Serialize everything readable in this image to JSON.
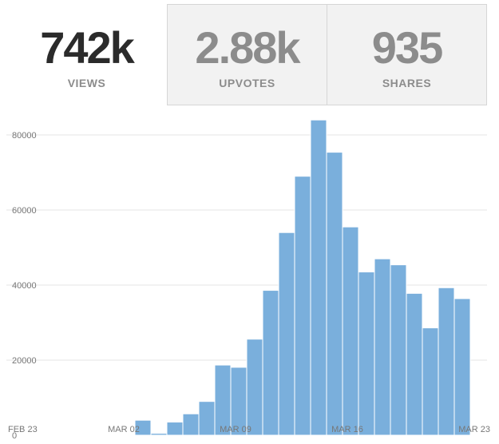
{
  "stats": [
    {
      "value": "742k",
      "label": "VIEWS",
      "active": true
    },
    {
      "value": "2.88k",
      "label": "UPVOTES",
      "active": false
    },
    {
      "value": "935",
      "label": "SHARES",
      "active": false
    }
  ],
  "colors": {
    "bar": "#7aafdc",
    "bar_edge": "#ffffff",
    "active_value": "#2b2b2b",
    "inactive_value": "#8c8c8c",
    "inactive_tab_bg": "#f2f2f2",
    "tab_border": "#d6d6d6",
    "grid": "#e6e6e6"
  },
  "chart_data": {
    "type": "bar",
    "title": "",
    "xlabel": "",
    "ylabel": "",
    "ylim": [
      0,
      90000
    ],
    "yticks": [
      0,
      20000,
      40000,
      60000,
      80000
    ],
    "ytick_labels": [
      "0",
      "20000",
      "40000",
      "60000",
      "80000"
    ],
    "grid": true,
    "xtick_labels": [
      {
        "label": "FEB 23",
        "date": "2015-02-23"
      },
      {
        "label": "MAR 02",
        "date": "2015-03-02"
      },
      {
        "label": "MAR 09",
        "date": "2015-03-09"
      },
      {
        "label": "MAR 16",
        "date": "2015-03-16"
      },
      {
        "label": "MAR 23",
        "date": "2015-03-23"
      }
    ],
    "x": [
      "2015-02-23",
      "2015-02-24",
      "2015-02-25",
      "2015-02-26",
      "2015-02-27",
      "2015-02-28",
      "2015-03-01",
      "2015-03-02",
      "2015-03-03",
      "2015-03-04",
      "2015-03-05",
      "2015-03-06",
      "2015-03-07",
      "2015-03-08",
      "2015-03-09",
      "2015-03-10",
      "2015-03-11",
      "2015-03-12",
      "2015-03-13",
      "2015-03-14",
      "2015-03-15",
      "2015-03-16",
      "2015-03-17",
      "2015-03-18",
      "2015-03-19",
      "2015-03-20",
      "2015-03-21",
      "2015-03-22",
      "2015-03-23"
    ],
    "values": [
      0,
      0,
      0,
      0,
      0,
      0,
      0,
      0,
      4000,
      500,
      3500,
      5700,
      9000,
      18700,
      18100,
      25600,
      38600,
      54000,
      69000,
      84000,
      75400,
      55500,
      43500,
      47000,
      45400,
      37800,
      28600,
      39300,
      36400
    ]
  }
}
